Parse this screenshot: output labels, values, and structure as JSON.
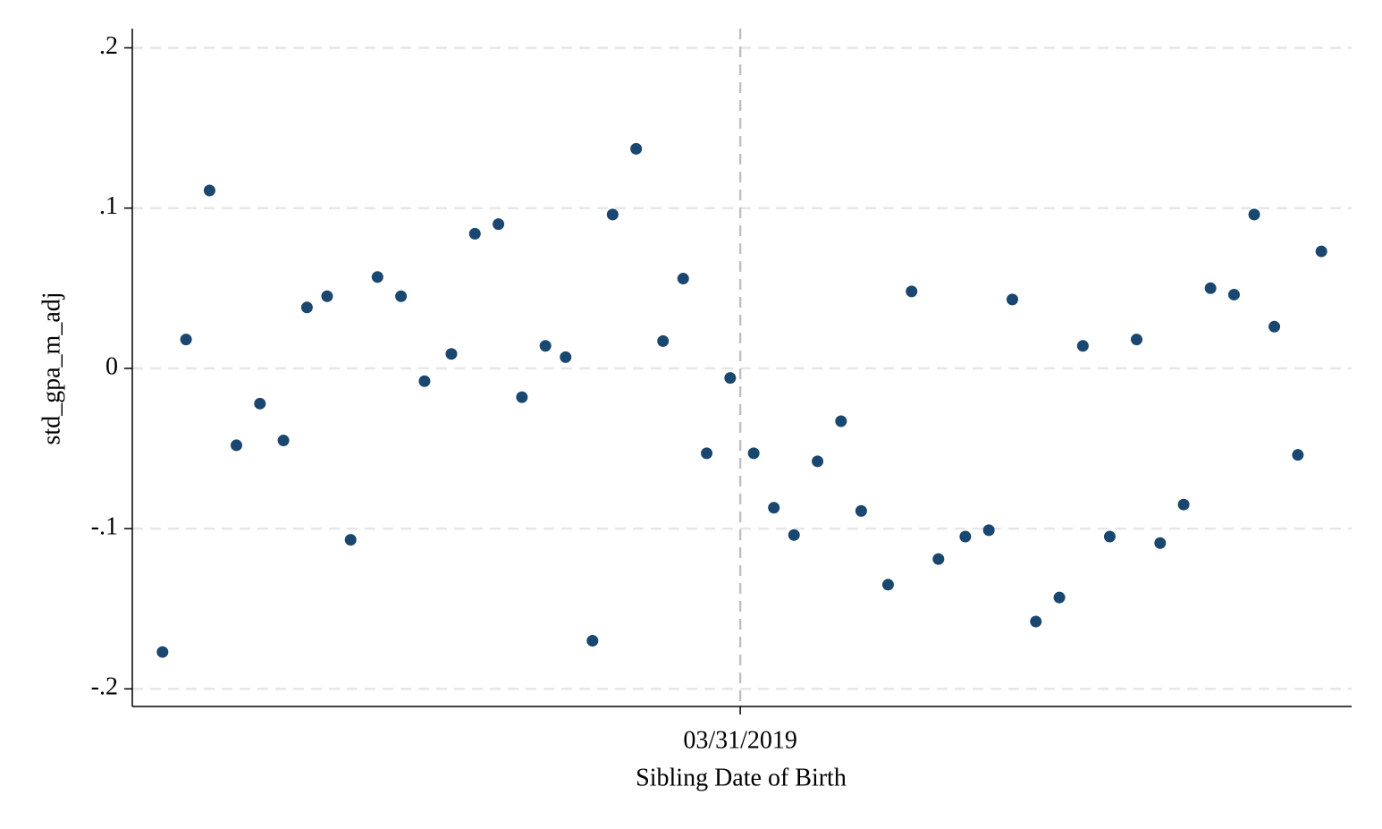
{
  "chart_data": {
    "type": "scatter",
    "x_label": "Sibling Date of Birth",
    "y_label": "std_gpa_m_adj",
    "color": "#1a476f",
    "grid": true,
    "x": [
      -172,
      -165,
      -158,
      -150,
      -143,
      -136,
      -129,
      -123,
      -116,
      -108,
      -101,
      -94,
      -86,
      -79,
      -72,
      -65,
      -58,
      -52,
      -44,
      -38,
      -31,
      -23,
      -17,
      -10,
      -3,
      4,
      10,
      16,
      23,
      30,
      36,
      44,
      51,
      59,
      67,
      74,
      81,
      88,
      95,
      102,
      110,
      118,
      125,
      132,
      140,
      147,
      153,
      159,
      166,
      173
    ],
    "values": [
      -0.177,
      0.018,
      0.111,
      -0.048,
      -0.022,
      -0.045,
      0.038,
      0.045,
      -0.107,
      0.057,
      0.045,
      -0.008,
      0.009,
      0.084,
      0.09,
      -0.018,
      0.014,
      0.007,
      -0.17,
      0.096,
      0.137,
      0.017,
      0.056,
      -0.053,
      -0.006,
      -0.053,
      -0.087,
      -0.104,
      -0.058,
      -0.033,
      -0.089,
      -0.135,
      0.048,
      -0.119,
      -0.105,
      -0.101,
      0.043,
      -0.158,
      -0.143,
      0.014,
      -0.105,
      0.018,
      -0.109,
      -0.085,
      0.05,
      0.046,
      0.096,
      0.026,
      -0.054,
      0.073
    ],
    "xlim": [
      -181,
      182
    ],
    "xticks": [
      {
        "value": 0,
        "label": "03/31/2019"
      }
    ],
    "ylim": [
      -0.211,
      0.212
    ],
    "yticks": [
      {
        "value": -0.2,
        "label": "-.2"
      },
      {
        "value": -0.1,
        "label": "-.1"
      },
      0,
      {
        "value": 0.1,
        "label": ".1"
      },
      {
        "value": 0.2,
        "label": ".2"
      }
    ]
  }
}
